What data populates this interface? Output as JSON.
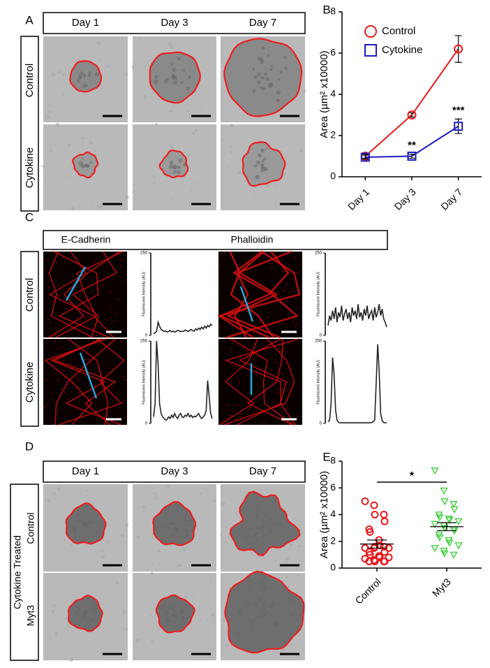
{
  "panels": {
    "a": {
      "label": "A",
      "columns": [
        "Day 1",
        "Day 3",
        "Day 7"
      ],
      "rows": [
        "Control",
        "Cytokine"
      ]
    },
    "c": {
      "label": "C",
      "columns": [
        "E-Cadherin",
        "Phalloidin"
      ],
      "rows": [
        "Control",
        "Cytokine"
      ]
    },
    "d": {
      "label": "D",
      "columns": [
        "Day 1",
        "Day 3",
        "Day 7"
      ],
      "group": "Cytokine Treated",
      "rows": [
        "Control",
        "Myt3"
      ]
    }
  },
  "chart_data": [
    {
      "type": "line",
      "label": "B",
      "y_label": "Area (µm² x10000)",
      "categories": [
        "Day 1",
        "Day 3",
        "Day 7"
      ],
      "series": [
        {
          "name": "Control",
          "color": "#e8191c",
          "marker": "circle",
          "values": [
            1.0,
            3.0,
            6.2
          ],
          "errors": [
            0.1,
            0.1,
            0.65
          ]
        },
        {
          "name": "Cytokine",
          "color": "#1c1cc0",
          "marker": "square",
          "values": [
            0.95,
            1.0,
            2.45
          ],
          "errors": [
            0.1,
            0.1,
            0.35
          ]
        }
      ],
      "annotations": [
        {
          "text": "**",
          "x": "Day 3"
        },
        {
          "text": "***",
          "x": "Day 7"
        }
      ],
      "ylim": [
        0,
        8
      ],
      "yticks": [
        0,
        2,
        4,
        6,
        8
      ],
      "legend": "top-left"
    },
    {
      "type": "strip",
      "label": "E",
      "y_label": "Area (µm² x10000)",
      "significance": "*",
      "series": [
        {
          "name": "Control",
          "color": "#e8191c",
          "marker": "circle",
          "values": [
            5.0,
            4.7,
            4.0,
            4.0,
            3.5,
            2.9,
            2.7,
            2.1,
            1.7,
            1.5,
            1.5,
            1.5,
            1.6,
            1.6,
            1.2,
            1.2,
            1.0,
            0.9,
            0.8,
            0.8,
            0.7,
            0.6,
            0.5,
            0.5,
            0.5,
            0.5
          ],
          "mean": 1.8,
          "sem": 0.3
        },
        {
          "name": "Myt3",
          "color": "#33cc33",
          "marker": "triangle-down",
          "values": [
            7.3,
            5.8,
            5.0,
            4.8,
            4.4,
            4.0,
            3.8,
            3.7,
            3.6,
            3.5,
            3.3,
            3.2,
            3.0,
            2.9,
            2.8,
            2.5,
            2.3,
            2.1,
            1.9,
            1.7,
            1.5,
            1.3,
            1.1,
            1.0
          ],
          "mean": 3.1,
          "sem": 0.3
        }
      ],
      "ylim": [
        0,
        8
      ],
      "yticks": [
        0,
        2,
        4,
        6,
        8
      ]
    },
    {
      "type": "profile",
      "y_label": "Fluorescent Intensity (AU)",
      "ylim": [
        0,
        250
      ],
      "yticks": [
        0,
        250
      ],
      "color": "#222222",
      "values": [
        5,
        8,
        12,
        40,
        28,
        18,
        15,
        12,
        14,
        10,
        12,
        15,
        11,
        13,
        10,
        12,
        15,
        14,
        11,
        13,
        12,
        16,
        14,
        12,
        15,
        18,
        14,
        13,
        20,
        16,
        22,
        18,
        25,
        20,
        28,
        22,
        30,
        26,
        34,
        30
      ]
    },
    {
      "type": "profile",
      "y_label": "Fluorescent Intensity (AU)",
      "ylim": [
        0,
        250
      ],
      "yticks": [
        0,
        250
      ],
      "color": "#222222",
      "values": [
        30,
        60,
        45,
        75,
        50,
        85,
        40,
        70,
        55,
        90,
        45,
        65,
        80,
        50,
        70,
        40,
        85,
        60,
        75,
        50,
        95,
        55,
        70,
        45,
        80,
        60,
        90,
        50,
        65,
        75,
        45,
        85,
        55,
        70,
        95,
        60,
        80,
        50,
        40,
        25
      ]
    },
    {
      "type": "profile",
      "y_label": "Fluorescent Intensity (AU)",
      "ylim": [
        0,
        250
      ],
      "yticks": [
        0,
        250
      ],
      "color": "#222222",
      "values": [
        20,
        60,
        250,
        180,
        60,
        30,
        20,
        15,
        10,
        12,
        20,
        15,
        25,
        18,
        30,
        20,
        15,
        25,
        30,
        20,
        18,
        25,
        22,
        30,
        20,
        25,
        18,
        22,
        20,
        25,
        30,
        20,
        15,
        20,
        25,
        40,
        130,
        80,
        30,
        15
      ]
    },
    {
      "type": "profile",
      "y_label": "Fluorescent Intensity (AU)",
      "ylim": [
        0,
        250
      ],
      "yticks": [
        0,
        250
      ],
      "color": "#222222",
      "values": [
        5,
        10,
        60,
        200,
        150,
        40,
        10,
        3,
        2,
        2,
        2,
        2,
        2,
        2,
        2,
        2,
        2,
        2,
        2,
        2,
        2,
        2,
        2,
        2,
        2,
        2,
        2,
        2,
        2,
        3,
        5,
        10,
        120,
        240,
        160,
        30,
        8,
        3,
        2,
        2
      ]
    }
  ]
}
